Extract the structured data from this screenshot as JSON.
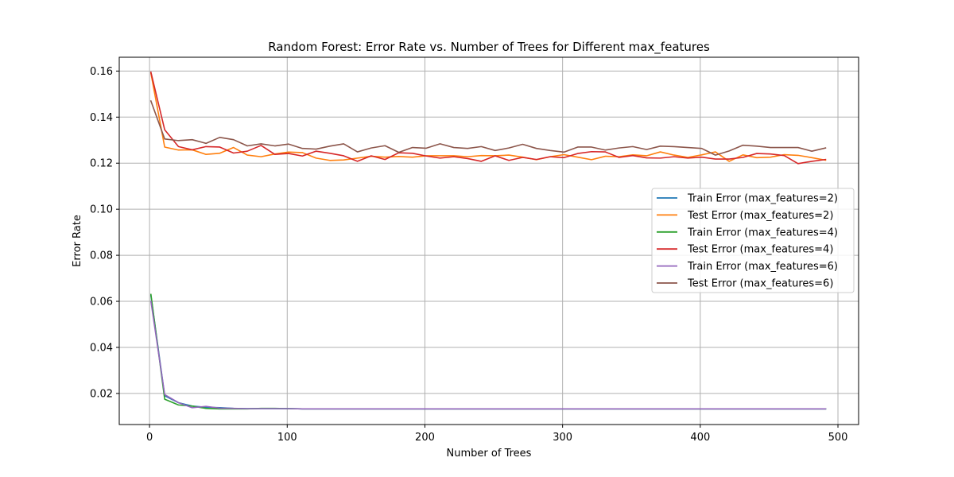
{
  "chart_data": {
    "type": "line",
    "title": "Random Forest: Error Rate vs. Number of Trees for Different max_features",
    "xlabel": "Number of Trees",
    "ylabel": "Error Rate",
    "xlim": [
      -22,
      515
    ],
    "ylim": [
      0.0065,
      0.166
    ],
    "xticks": [
      0,
      100,
      200,
      300,
      400,
      500
    ],
    "yticks": [
      0.02,
      0.04,
      0.06,
      0.08,
      0.1,
      0.12,
      0.14,
      0.16
    ],
    "ytick_labels": [
      "0.02",
      "0.04",
      "0.06",
      "0.08",
      "0.10",
      "0.12",
      "0.14",
      "0.16"
    ],
    "grid": true,
    "legend_position": "center-right",
    "x": [
      1,
      11,
      21,
      31,
      41,
      51,
      61,
      71,
      81,
      91,
      101,
      111,
      121,
      131,
      141,
      151,
      161,
      171,
      181,
      191,
      201,
      211,
      221,
      231,
      241,
      251,
      261,
      271,
      281,
      291,
      301,
      311,
      321,
      331,
      341,
      351,
      361,
      371,
      381,
      391,
      401,
      411,
      421,
      431,
      441,
      451,
      461,
      471,
      481,
      491
    ],
    "series": [
      {
        "name": "Train Error (max_features=2)",
        "color": "#1f77b4",
        "values": [
          0.0625,
          0.019,
          0.016,
          0.0145,
          0.014,
          0.0138,
          0.0135,
          0.0134,
          0.0134,
          0.0134,
          0.0134,
          0.0133,
          0.0133,
          0.0133,
          0.0133,
          0.0133,
          0.0133,
          0.0133,
          0.0133,
          0.0133,
          0.0133,
          0.0133,
          0.0133,
          0.0133,
          0.0133,
          0.0133,
          0.0133,
          0.0133,
          0.0133,
          0.0133,
          0.0133,
          0.0133,
          0.0133,
          0.0133,
          0.0133,
          0.0133,
          0.0133,
          0.0133,
          0.0133,
          0.0133,
          0.0133,
          0.0133,
          0.0133,
          0.0133,
          0.0133,
          0.0133,
          0.0133,
          0.0133,
          0.0133,
          0.0133
        ]
      },
      {
        "name": "Test Error (max_features=2)",
        "color": "#ff7f0e",
        "values": [
          0.159,
          0.127,
          0.1257,
          0.1258,
          0.1238,
          0.1243,
          0.1268,
          0.1235,
          0.1228,
          0.124,
          0.1248,
          0.1246,
          0.1222,
          0.1212,
          0.1214,
          0.1222,
          0.123,
          0.1226,
          0.1229,
          0.1226,
          0.1232,
          0.1232,
          0.1232,
          0.1228,
          0.1233,
          0.1232,
          0.1235,
          0.1226,
          0.1215,
          0.1228,
          0.1237,
          0.1226,
          0.1215,
          0.123,
          0.1228,
          0.1236,
          0.1232,
          0.1249,
          0.1235,
          0.1225,
          0.1236,
          0.1249,
          0.1208,
          0.1236,
          0.1224,
          0.1226,
          0.1237,
          0.1234,
          0.1224,
          0.1213
        ]
      },
      {
        "name": "Train Error (max_features=4)",
        "color": "#2ca02c",
        "values": [
          0.063,
          0.0175,
          0.015,
          0.0145,
          0.0135,
          0.0133,
          0.0133,
          0.0133,
          0.0135,
          0.0135,
          0.0134,
          0.0133,
          0.0133,
          0.0133,
          0.0133,
          0.0133,
          0.0133,
          0.0133,
          0.0133,
          0.0133,
          0.0133,
          0.0133,
          0.0133,
          0.0133,
          0.0133,
          0.0133,
          0.0133,
          0.0133,
          0.0133,
          0.0133,
          0.0133,
          0.0133,
          0.0133,
          0.0133,
          0.0133,
          0.0133,
          0.0133,
          0.0133,
          0.0133,
          0.0133,
          0.0133,
          0.0133,
          0.0133,
          0.0133,
          0.0133,
          0.0133,
          0.0133,
          0.0133,
          0.0133,
          0.0133
        ]
      },
      {
        "name": "Test Error (max_features=4)",
        "color": "#d62728",
        "values": [
          0.1595,
          0.1345,
          0.1272,
          0.1258,
          0.1272,
          0.127,
          0.1244,
          0.1252,
          0.1277,
          0.1238,
          0.1242,
          0.1231,
          0.1252,
          0.1243,
          0.1232,
          0.1208,
          0.1232,
          0.1216,
          0.1245,
          0.1243,
          0.1231,
          0.1222,
          0.1228,
          0.122,
          0.1208,
          0.1232,
          0.1212,
          0.1225,
          0.1216,
          0.1228,
          0.1224,
          0.1242,
          0.125,
          0.1249,
          0.1225,
          0.1233,
          0.1223,
          0.1222,
          0.1228,
          0.1222,
          0.1226,
          0.1218,
          0.1218,
          0.1225,
          0.1242,
          0.124,
          0.1233,
          0.1198,
          0.1208,
          0.1216
        ]
      },
      {
        "name": "Train Error (max_features=6)",
        "color": "#9467bd",
        "values": [
          0.06,
          0.0195,
          0.016,
          0.0138,
          0.0144,
          0.0136,
          0.0135,
          0.0134,
          0.0134,
          0.0134,
          0.0134,
          0.0133,
          0.0133,
          0.0133,
          0.0133,
          0.0133,
          0.0133,
          0.0133,
          0.0133,
          0.0133,
          0.0133,
          0.0133,
          0.0133,
          0.0133,
          0.0133,
          0.0133,
          0.0133,
          0.0133,
          0.0133,
          0.0133,
          0.0133,
          0.0133,
          0.0133,
          0.0133,
          0.0133,
          0.0133,
          0.0133,
          0.0133,
          0.0133,
          0.0133,
          0.0133,
          0.0133,
          0.0133,
          0.0133,
          0.0133,
          0.0133,
          0.0133,
          0.0133,
          0.0133,
          0.0133
        ]
      },
      {
        "name": "Test Error (max_features=6)",
        "color": "#8c564b",
        "values": [
          0.147,
          0.1305,
          0.1298,
          0.1302,
          0.1286,
          0.1312,
          0.1302,
          0.1275,
          0.1284,
          0.1275,
          0.1283,
          0.1264,
          0.1261,
          0.1274,
          0.1284,
          0.1249,
          0.1266,
          0.1276,
          0.1247,
          0.1268,
          0.1265,
          0.1284,
          0.1268,
          0.1264,
          0.1272,
          0.1255,
          0.1266,
          0.1282,
          0.1264,
          0.1255,
          0.1248,
          0.127,
          0.127,
          0.1257,
          0.1266,
          0.1272,
          0.1259,
          0.1274,
          0.1272,
          0.1268,
          0.1264,
          0.1235,
          0.1253,
          0.1278,
          0.1274,
          0.1268,
          0.1268,
          0.1268,
          0.1252,
          0.1266
        ]
      }
    ]
  }
}
